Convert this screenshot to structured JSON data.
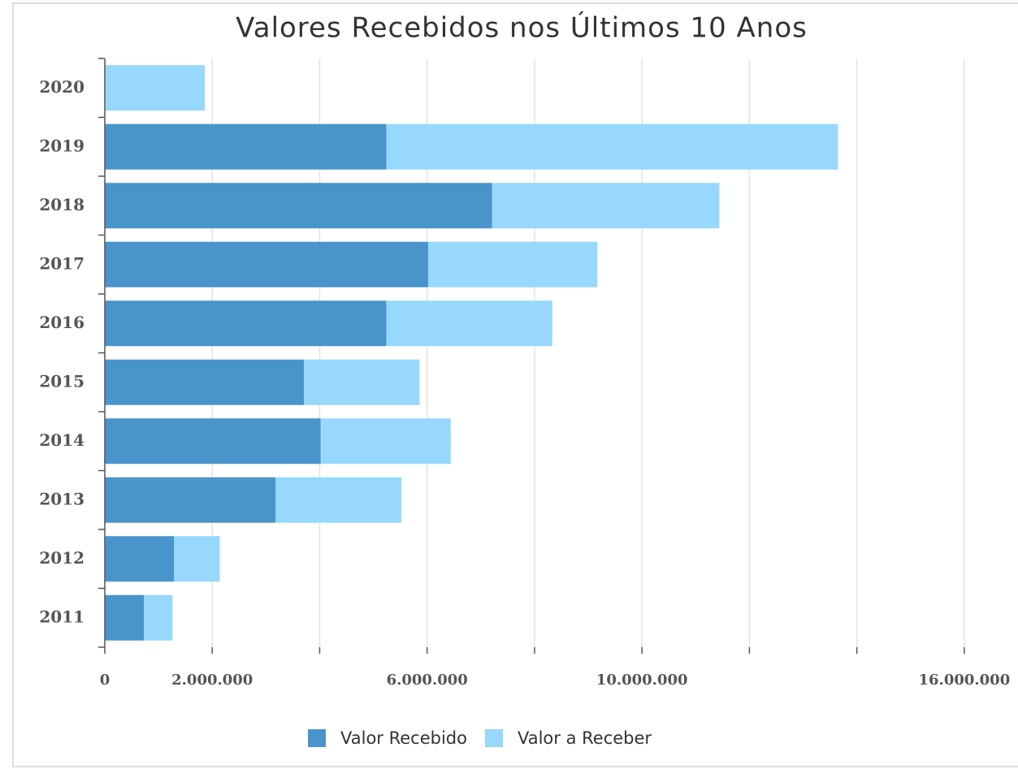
{
  "chart_data": {
    "type": "stacked_barh",
    "title": "Valores Recebidos nos Últimos 10 Anos",
    "categories": [
      "2020",
      "2019",
      "2018",
      "2017",
      "2016",
      "2015",
      "2014",
      "2013",
      "2012",
      "2011"
    ],
    "series": [
      {
        "name": "Valor Recebido",
        "color": "#4a94cc",
        "values": [
          0,
          5240000,
          7210000,
          6020000,
          5240000,
          3710000,
          4020000,
          3180000,
          1290000,
          730000
        ]
      },
      {
        "name": "Valor a Receber",
        "color": "#97d8fc",
        "values": [
          1860000,
          8410000,
          4230000,
          3150000,
          3090000,
          2150000,
          2420000,
          2340000,
          850000,
          530000
        ]
      }
    ],
    "xlim": [
      0,
      17000000
    ],
    "xticks": [
      0,
      {
        "value": 2000000,
        "label": "2.000.000"
      },
      {
        "value": 6000000,
        "label": "6.000.000"
      },
      {
        "value": 10000000,
        "label": "10.000.000"
      },
      {
        "value": 16000000,
        "label": "16.000.000"
      }
    ],
    "minor_xticks": [
      4000000,
      8000000,
      12000000,
      14000000
    ],
    "grid": true,
    "legend": "bottom"
  }
}
